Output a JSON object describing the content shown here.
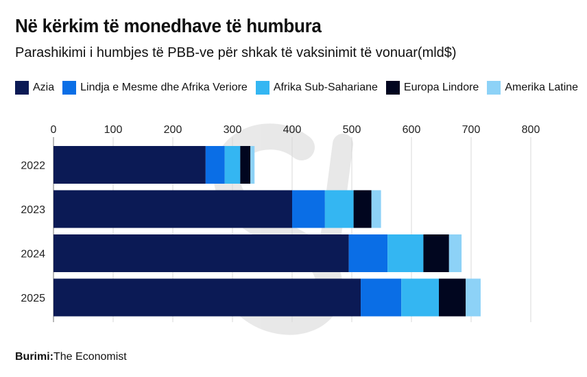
{
  "chart_data": {
    "type": "bar",
    "orientation": "horizontal",
    "stacked": true,
    "title": "Në kërkim të monedhave të humbura",
    "subtitle": "Parashikimi i humbjes të PBB-ve për shkak të vaksinimit të vonuar(mld$)",
    "categories": [
      "2022",
      "2023",
      "2024",
      "2025"
    ],
    "series": [
      {
        "name": "Azia",
        "color": "#0b1a55",
        "values": [
          255,
          400,
          495,
          515
        ]
      },
      {
        "name": "Lindja e Mesme dhe Afrika Veriore",
        "color": "#0a6ee6",
        "values": [
          32,
          55,
          65,
          68
        ]
      },
      {
        "name": "Afrika Sub-Sahariane",
        "color": "#34b6f2",
        "values": [
          26,
          48,
          60,
          63
        ]
      },
      {
        "name": "Europa Lindore",
        "color": "#01061f",
        "values": [
          17,
          30,
          43,
          45
        ]
      },
      {
        "name": "Amerika Latine",
        "color": "#8dd2f7",
        "values": [
          7,
          16,
          21,
          25
        ]
      }
    ],
    "xlim": [
      0,
      800
    ],
    "xticks": [
      0,
      100,
      200,
      300,
      400,
      500,
      600,
      700,
      800
    ],
    "xaxis_position": "top",
    "grid": true,
    "legend_position": "top"
  },
  "source": {
    "label": "Burimi:",
    "text": "The Economist"
  }
}
